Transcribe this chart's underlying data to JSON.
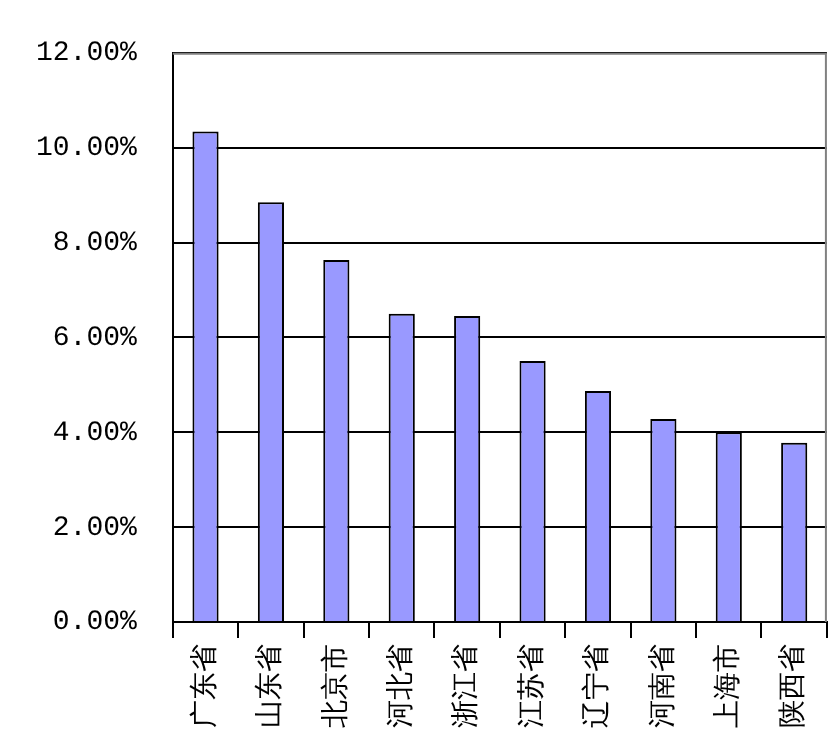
{
  "chart_data": {
    "type": "bar",
    "categories": [
      "广东省",
      "山东省",
      "北京市",
      "河北省",
      "浙江省",
      "江苏省",
      "辽宁省",
      "河南省",
      "上海市",
      "陕西省"
    ],
    "values": [
      10.34,
      8.85,
      7.63,
      6.5,
      6.45,
      5.5,
      4.87,
      4.28,
      4.0,
      3.78
    ],
    "color": "#9999ff",
    "ylim": [
      0,
      12
    ],
    "yticks": [
      {
        "value": 0,
        "label": "0.00%"
      },
      {
        "value": 2,
        "label": "2.00%"
      },
      {
        "value": 4,
        "label": "4.00%"
      },
      {
        "value": 6,
        "label": "6.00%"
      },
      {
        "value": 8,
        "label": "8.00%"
      },
      {
        "value": 10,
        "label": "10.00%"
      },
      {
        "value": 12,
        "label": "12.00%"
      }
    ],
    "grid": "y"
  }
}
